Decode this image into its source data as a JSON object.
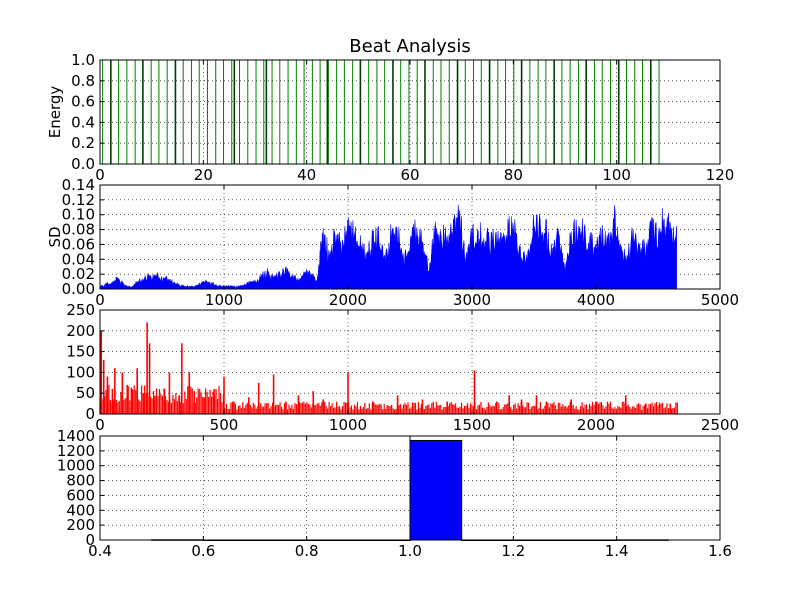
{
  "figure_title": "Beat Analysis",
  "chart_data": [
    {
      "type": "bar",
      "id": "energy",
      "ylabel": "Energy",
      "xlim": [
        0,
        120
      ],
      "ylim": [
        0,
        1.0
      ],
      "xticks": [
        0,
        20,
        40,
        60,
        80,
        100,
        120
      ],
      "xtick_labels": [
        "0",
        "20",
        "40",
        "60",
        "80",
        "100",
        "120"
      ],
      "yticks": [
        0.0,
        0.2,
        0.4,
        0.6,
        0.8,
        1.0
      ],
      "ytick_labels": [
        "0.0",
        "0.2",
        "0.4",
        "0.6",
        "0.8",
        "1.0"
      ],
      "grid": true,
      "color": "#007f00",
      "beat_lines": [
        0.5,
        2.1,
        3.6,
        5.2,
        6.8,
        8.3,
        9.9,
        11.4,
        13.0,
        14.6,
        16.1,
        17.7,
        19.2,
        20.8,
        22.4,
        23.9,
        25.5,
        27.0,
        28.6,
        30.2,
        31.7,
        33.3,
        34.8,
        36.4,
        38.0,
        39.5,
        41.1,
        42.6,
        44.2,
        45.8,
        47.3,
        48.9,
        50.4,
        52.0,
        53.6,
        55.1,
        56.7,
        58.2,
        59.8,
        61.4,
        62.9,
        64.5,
        66.0,
        67.6,
        69.2,
        70.7,
        72.3,
        73.8,
        75.4,
        77.0,
        78.5,
        80.1,
        81.6,
        83.2,
        84.8,
        86.3,
        87.9,
        89.4,
        91.0,
        92.6,
        94.1,
        95.7,
        97.2,
        98.8,
        100.4,
        101.9,
        103.5,
        105.0,
        106.6,
        108.2
      ],
      "bold_beats": [
        2.1,
        8.3,
        14.6,
        26.0,
        32.2,
        44.0,
        50.4,
        56.7,
        62.9,
        69.2,
        75.4,
        81.6,
        87.9,
        94.1,
        100.4,
        106.6
      ]
    },
    {
      "type": "area",
      "id": "sd",
      "ylabel": "SD",
      "xlim": [
        0,
        5000
      ],
      "ylim": [
        0,
        0.14
      ],
      "xticks": [
        0,
        1000,
        2000,
        3000,
        4000,
        5000
      ],
      "xtick_labels": [
        "0",
        "1000",
        "2000",
        "3000",
        "4000",
        "5000"
      ],
      "yticks": [
        0.0,
        0.02,
        0.04,
        0.06,
        0.08,
        0.1,
        0.12,
        0.14
      ],
      "ytick_labels": [
        "0.00",
        "0.02",
        "0.04",
        "0.06",
        "0.08",
        "0.10",
        "0.12",
        "0.14"
      ],
      "grid": true,
      "color": "#0000ff",
      "x": [
        0,
        50,
        100,
        150,
        200,
        250,
        300,
        350,
        400,
        450,
        500,
        550,
        600,
        650,
        700,
        750,
        800,
        850,
        900,
        950,
        1000,
        1050,
        1100,
        1150,
        1200,
        1250,
        1300,
        1350,
        1400,
        1450,
        1500,
        1550,
        1600,
        1650,
        1700,
        1750,
        1780,
        1800,
        1850,
        1900,
        1950,
        2000,
        2050,
        2100,
        2150,
        2200,
        2250,
        2300,
        2350,
        2400,
        2450,
        2500,
        2550,
        2600,
        2650,
        2700,
        2750,
        2800,
        2850,
        2900,
        2950,
        3000,
        3050,
        3100,
        3150,
        3200,
        3250,
        3300,
        3350,
        3400,
        3450,
        3500,
        3550,
        3600,
        3650,
        3700,
        3750,
        3800,
        3850,
        3900,
        3950,
        4000,
        4050,
        4100,
        4150,
        4200,
        4250,
        4300,
        4350,
        4400,
        4450,
        4500,
        4550,
        4600,
        4650
      ],
      "y": [
        0.004,
        0.008,
        0.014,
        0.018,
        0.006,
        0.003,
        0.012,
        0.018,
        0.022,
        0.024,
        0.02,
        0.018,
        0.01,
        0.006,
        0.005,
        0.004,
        0.008,
        0.014,
        0.01,
        0.006,
        0.004,
        0.006,
        0.004,
        0.006,
        0.01,
        0.014,
        0.022,
        0.028,
        0.018,
        0.026,
        0.03,
        0.022,
        0.016,
        0.028,
        0.03,
        0.01,
        0.065,
        0.085,
        0.06,
        0.095,
        0.07,
        0.104,
        0.09,
        0.08,
        0.06,
        0.085,
        0.09,
        0.045,
        0.095,
        0.105,
        0.05,
        0.09,
        0.1,
        0.085,
        0.03,
        0.095,
        0.092,
        0.08,
        0.11,
        0.115,
        0.06,
        0.095,
        0.085,
        0.1,
        0.08,
        0.095,
        0.075,
        0.11,
        0.095,
        0.05,
        0.06,
        0.11,
        0.1,
        0.095,
        0.06,
        0.09,
        0.03,
        0.09,
        0.105,
        0.095,
        0.08,
        0.07,
        0.09,
        0.085,
        0.118,
        0.07,
        0.05,
        0.095,
        0.075,
        0.065,
        0.105,
        0.085,
        0.12,
        0.1,
        0.085
      ]
    },
    {
      "type": "bar",
      "id": "intervals",
      "xlim": [
        0,
        2500
      ],
      "ylim": [
        0,
        250
      ],
      "xticks": [
        0,
        500,
        1000,
        1500,
        2000,
        2500
      ],
      "xtick_labels": [
        "0",
        "500",
        "1000",
        "1500",
        "2000",
        "2500"
      ],
      "yticks": [
        0,
        50,
        100,
        150,
        200,
        250
      ],
      "ytick_labels": [
        "0",
        "50",
        "100",
        "150",
        "200",
        "250"
      ],
      "grid": true,
      "color": "#ff0000",
      "peaks": [
        [
          5,
          200
        ],
        [
          15,
          130
        ],
        [
          30,
          90
        ],
        [
          50,
          60
        ],
        [
          60,
          110
        ],
        [
          90,
          100
        ],
        [
          110,
          70
        ],
        [
          130,
          60
        ],
        [
          150,
          110
        ],
        [
          175,
          50
        ],
        [
          190,
          220
        ],
        [
          200,
          170
        ],
        [
          220,
          40
        ],
        [
          260,
          60
        ],
        [
          280,
          100
        ],
        [
          320,
          45
        ],
        [
          330,
          170
        ],
        [
          360,
          100
        ],
        [
          380,
          55
        ],
        [
          420,
          40
        ],
        [
          460,
          60
        ],
        [
          500,
          90
        ],
        [
          540,
          30
        ],
        [
          600,
          40
        ],
        [
          640,
          75
        ],
        [
          700,
          95
        ],
        [
          750,
          30
        ],
        [
          800,
          45
        ],
        [
          860,
          55
        ],
        [
          900,
          35
        ],
        [
          1000,
          100
        ],
        [
          1100,
          30
        ],
        [
          1200,
          45
        ],
        [
          1300,
          35
        ],
        [
          1400,
          30
        ],
        [
          1510,
          105
        ],
        [
          1600,
          30
        ],
        [
          1650,
          45
        ],
        [
          1700,
          35
        ],
        [
          1760,
          45
        ],
        [
          1800,
          30
        ],
        [
          1900,
          35
        ],
        [
          2000,
          30
        ],
        [
          2120,
          45
        ],
        [
          2200,
          25
        ],
        [
          2300,
          25
        ]
      ],
      "baseline_level": 20,
      "xmax_data": 2330
    },
    {
      "type": "bar",
      "id": "histogram",
      "xlim": [
        0.4,
        1.6
      ],
      "ylim": [
        0,
        1400
      ],
      "xticks": [
        0.4,
        0.6,
        0.8,
        1.0,
        1.2,
        1.4,
        1.6
      ],
      "xtick_labels": [
        "0.4",
        "0.6",
        "0.8",
        "1.0",
        "1.2",
        "1.4",
        "1.6"
      ],
      "yticks": [
        0,
        200,
        400,
        600,
        800,
        1000,
        1200,
        1400
      ],
      "ytick_labels": [
        "0",
        "200",
        "400",
        "600",
        "800",
        "1000",
        "1200",
        "1400"
      ],
      "grid": true,
      "color": "#0000ff",
      "bins": [
        [
          0.5,
          0.6,
          3
        ],
        [
          0.6,
          0.7,
          0
        ],
        [
          0.7,
          0.8,
          0
        ],
        [
          0.8,
          0.9,
          0
        ],
        [
          0.9,
          1.0,
          0
        ],
        [
          1.0,
          1.1,
          1340
        ],
        [
          1.1,
          1.2,
          0
        ],
        [
          1.2,
          1.3,
          0
        ],
        [
          1.3,
          1.4,
          0
        ],
        [
          1.4,
          1.5,
          2
        ]
      ]
    }
  ]
}
